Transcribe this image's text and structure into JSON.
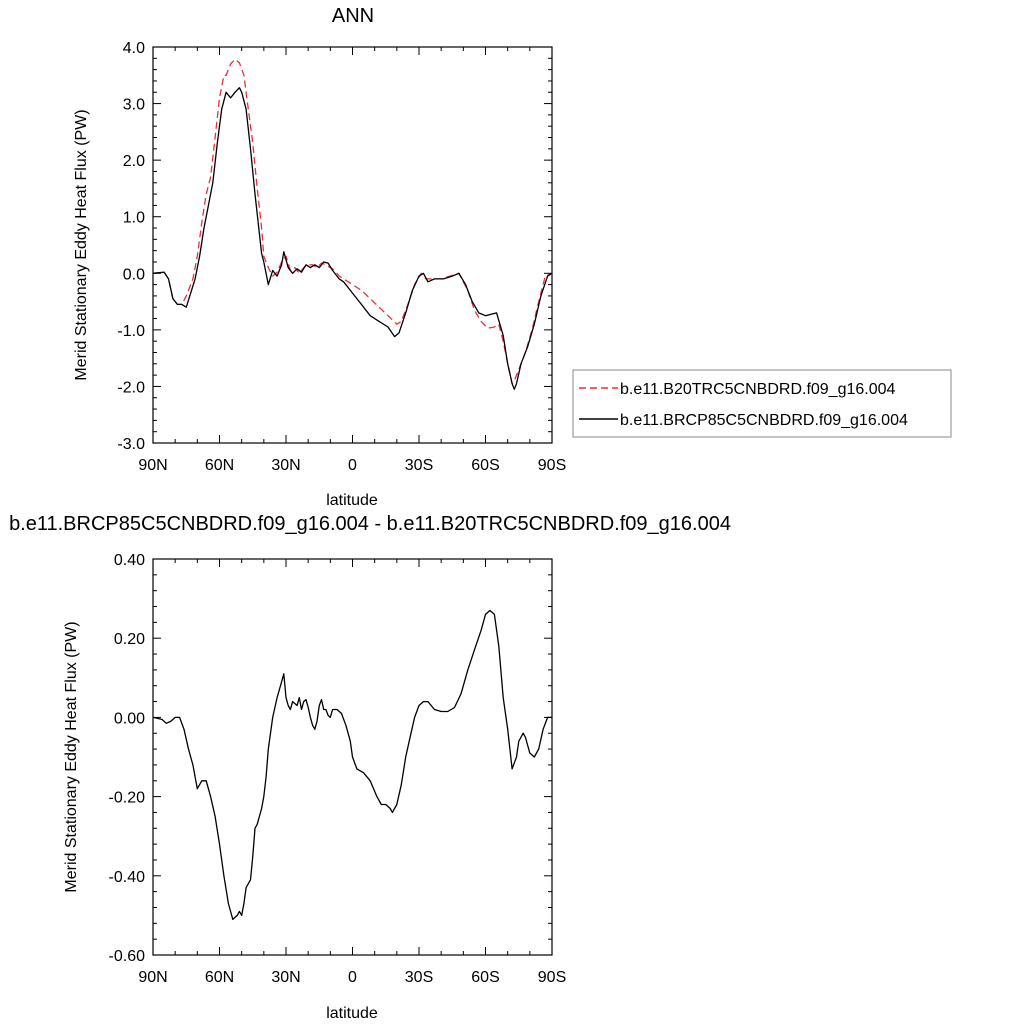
{
  "chart_data": [
    {
      "type": "line",
      "title": "ANN",
      "xlabel": "latitude",
      "ylabel": "Merid Stationary Eddy Heat Flux (PW)",
      "x_unit": "degrees latitude (positive = north)",
      "xlim": [
        90,
        -90
      ],
      "ylim": [
        -3.0,
        4.0
      ],
      "x_ticks": [
        90,
        60,
        30,
        0,
        -30,
        -60,
        -90
      ],
      "x_tick_labels": [
        "90N",
        "60N",
        "30N",
        "0",
        "30S",
        "60S",
        "90S"
      ],
      "y_ticks": [
        -3.0,
        -2.0,
        -1.0,
        0.0,
        1.0,
        2.0,
        3.0,
        4.0
      ],
      "y_tick_labels": [
        "-3.0",
        "-2.0",
        "-1.0",
        "0.0",
        "1.0",
        "2.0",
        "3.0",
        "4.0"
      ],
      "legend_position": "right, outside",
      "grid": false,
      "series": [
        {
          "name": "b.e11.B20TRC5CNBDRD.f09_g16.004",
          "color": "#e8303a",
          "style": "dashed",
          "points": [
            [
              90,
              0
            ],
            [
              85,
              0.02
            ],
            [
              83,
              -0.1
            ],
            [
              81,
              -0.45
            ],
            [
              79,
              -0.55
            ],
            [
              77,
              -0.55
            ],
            [
              75,
              -0.4
            ],
            [
              72,
              -0.1
            ],
            [
              70,
              0.3
            ],
            [
              68,
              0.9
            ],
            [
              66,
              1.4
            ],
            [
              64,
              1.7
            ],
            [
              62,
              2.4
            ],
            [
              60,
              3.1
            ],
            [
              58,
              3.5
            ],
            [
              57,
              3.5
            ],
            [
              56,
              3.6
            ],
            [
              55,
              3.7
            ],
            [
              53,
              3.78
            ],
            [
              51,
              3.72
            ],
            [
              49,
              3.5
            ],
            [
              47,
              2.9
            ],
            [
              45,
              2.3
            ],
            [
              43,
              1.5
            ],
            [
              41,
              0.8
            ],
            [
              40,
              0.3
            ],
            [
              38,
              0.1
            ],
            [
              36,
              -0.05
            ],
            [
              34,
              0.02
            ],
            [
              32,
              0.2
            ],
            [
              30,
              0.3
            ],
            [
              28,
              0.05
            ],
            [
              26,
              0.1
            ],
            [
              24,
              0.0
            ],
            [
              22,
              0.1
            ],
            [
              20,
              0.15
            ],
            [
              18,
              0.15
            ],
            [
              16,
              0.1
            ],
            [
              14,
              0.18
            ],
            [
              12,
              0.15
            ],
            [
              10,
              0.1
            ],
            [
              8,
              0.05
            ],
            [
              6,
              -0.05
            ],
            [
              4,
              -0.1
            ],
            [
              0,
              -0.2
            ],
            [
              -4,
              -0.3
            ],
            [
              -8,
              -0.45
            ],
            [
              -12,
              -0.6
            ],
            [
              -16,
              -0.75
            ],
            [
              -20,
              -0.9
            ],
            [
              -22,
              -0.85
            ],
            [
              -25,
              -0.55
            ],
            [
              -28,
              -0.2
            ],
            [
              -31,
              0.0
            ],
            [
              -33,
              -0.1
            ],
            [
              -36,
              -0.1
            ],
            [
              -40,
              -0.1
            ],
            [
              -44,
              -0.05
            ],
            [
              -48,
              0.0
            ],
            [
              -52,
              -0.3
            ],
            [
              -55,
              -0.65
            ],
            [
              -58,
              -0.85
            ],
            [
              -61,
              -0.97
            ],
            [
              -64,
              -0.95
            ],
            [
              -66,
              -0.9
            ],
            [
              -68,
              -1.2
            ],
            [
              -70,
              -1.6
            ],
            [
              -72,
              -1.95
            ],
            [
              -73,
              -1.9
            ],
            [
              -75,
              -1.7
            ],
            [
              -78,
              -1.4
            ],
            [
              -81,
              -1.0
            ],
            [
              -84,
              -0.5
            ],
            [
              -87,
              -0.05
            ],
            [
              -90,
              0
            ]
          ]
        },
        {
          "name": "b.e11.BRCP85C5CNBDRD.f09_g16.004",
          "color": "#000000",
          "style": "solid",
          "points": [
            [
              90,
              0
            ],
            [
              85,
              0.02
            ],
            [
              83,
              -0.1
            ],
            [
              81,
              -0.45
            ],
            [
              79,
              -0.55
            ],
            [
              77,
              -0.55
            ],
            [
              75,
              -0.6
            ],
            [
              73,
              -0.35
            ],
            [
              71,
              -0.1
            ],
            [
              69,
              0.3
            ],
            [
              67,
              0.8
            ],
            [
              65,
              1.2
            ],
            [
              63,
              1.6
            ],
            [
              61,
              2.3
            ],
            [
              59,
              2.9
            ],
            [
              57,
              3.2
            ],
            [
              55,
              3.1
            ],
            [
              53,
              3.2
            ],
            [
              51,
              3.28
            ],
            [
              50,
              3.2
            ],
            [
              48,
              2.9
            ],
            [
              46,
              2.2
            ],
            [
              44,
              1.4
            ],
            [
              42,
              0.7
            ],
            [
              41,
              0.35
            ],
            [
              40,
              0.2
            ],
            [
              38,
              -0.2
            ],
            [
              36,
              0.05
            ],
            [
              34,
              -0.05
            ],
            [
              32,
              0.15
            ],
            [
              31,
              0.38
            ],
            [
              29,
              0.1
            ],
            [
              27,
              0.0
            ],
            [
              25,
              0.08
            ],
            [
              23,
              0.02
            ],
            [
              21,
              0.15
            ],
            [
              19,
              0.1
            ],
            [
              17,
              0.15
            ],
            [
              15,
              0.1
            ],
            [
              13,
              0.2
            ],
            [
              11,
              0.18
            ],
            [
              9,
              0.05
            ],
            [
              6,
              -0.1
            ],
            [
              4,
              -0.15
            ],
            [
              0,
              -0.35
            ],
            [
              -4,
              -0.55
            ],
            [
              -8,
              -0.75
            ],
            [
              -12,
              -0.85
            ],
            [
              -16,
              -0.95
            ],
            [
              -19,
              -1.12
            ],
            [
              -21,
              -1.05
            ],
            [
              -24,
              -0.7
            ],
            [
              -27,
              -0.3
            ],
            [
              -30,
              -0.05
            ],
            [
              -32,
              0.0
            ],
            [
              -34,
              -0.15
            ],
            [
              -37,
              -0.1
            ],
            [
              -41,
              -0.1
            ],
            [
              -45,
              -0.05
            ],
            [
              -48,
              0.0
            ],
            [
              -51,
              -0.2
            ],
            [
              -54,
              -0.5
            ],
            [
              -57,
              -0.7
            ],
            [
              -60,
              -0.75
            ],
            [
              -63,
              -0.72
            ],
            [
              -65,
              -0.7
            ],
            [
              -68,
              -1.1
            ],
            [
              -70,
              -1.6
            ],
            [
              -72,
              -1.95
            ],
            [
              -73,
              -2.05
            ],
            [
              -74,
              -1.95
            ],
            [
              -76,
              -1.6
            ],
            [
              -79,
              -1.3
            ],
            [
              -82,
              -0.9
            ],
            [
              -85,
              -0.4
            ],
            [
              -88,
              -0.05
            ],
            [
              -90,
              0
            ]
          ]
        }
      ]
    },
    {
      "type": "line",
      "title": "b.e11.BRCP85C5CNBDRD.f09_g16.004 - b.e11.B20TRC5CNBDRD.f09_g16.004",
      "xlabel": "latitude",
      "ylabel": "Merid Stationary Eddy Heat Flux (PW)",
      "x_unit": "degrees latitude (positive = north)",
      "xlim": [
        90,
        -90
      ],
      "ylim": [
        -0.6,
        0.4
      ],
      "x_ticks": [
        90,
        60,
        30,
        0,
        -30,
        -60,
        -90
      ],
      "x_tick_labels": [
        "90N",
        "60N",
        "30N",
        "0",
        "30S",
        "60S",
        "90S"
      ],
      "y_ticks": [
        -0.6,
        -0.4,
        -0.2,
        0.0,
        0.2,
        0.4
      ],
      "y_tick_labels": [
        "-0.60",
        "-0.40",
        "-0.20",
        "0.00",
        "0.20",
        "0.40"
      ],
      "grid": false,
      "series": [
        {
          "color": "#000000",
          "style": "solid",
          "points": [
            [
              90,
              0.0
            ],
            [
              86,
              -0.005
            ],
            [
              84,
              -0.015
            ],
            [
              82,
              -0.01
            ],
            [
              80,
              0.0
            ],
            [
              78,
              0.0
            ],
            [
              76,
              -0.03
            ],
            [
              74,
              -0.08
            ],
            [
              72,
              -0.12
            ],
            [
              70,
              -0.18
            ],
            [
              68,
              -0.16
            ],
            [
              66,
              -0.16
            ],
            [
              64,
              -0.2
            ],
            [
              62,
              -0.25
            ],
            [
              60,
              -0.32
            ],
            [
              58,
              -0.4
            ],
            [
              56,
              -0.47
            ],
            [
              54,
              -0.51
            ],
            [
              52,
              -0.5
            ],
            [
              51,
              -0.49
            ],
            [
              50,
              -0.5
            ],
            [
              49,
              -0.47
            ],
            [
              48,
              -0.43
            ],
            [
              47,
              -0.42
            ],
            [
              46,
              -0.41
            ],
            [
              45,
              -0.35
            ],
            [
              44,
              -0.28
            ],
            [
              43,
              -0.27
            ],
            [
              41,
              -0.23
            ],
            [
              40,
              -0.2
            ],
            [
              39,
              -0.15
            ],
            [
              38,
              -0.08
            ],
            [
              36,
              0.0
            ],
            [
              34,
              0.05
            ],
            [
              32,
              0.09
            ],
            [
              31,
              0.11
            ],
            [
              30,
              0.05
            ],
            [
              29,
              0.03
            ],
            [
              28,
              0.02
            ],
            [
              27,
              0.04
            ],
            [
              25,
              0.03
            ],
            [
              24,
              0.05
            ],
            [
              23,
              0.02
            ],
            [
              22,
              0.04
            ],
            [
              21,
              0.045
            ],
            [
              20,
              0.025
            ],
            [
              19,
              0.0
            ],
            [
              18,
              -0.02
            ],
            [
              17,
              -0.03
            ],
            [
              16,
              -0.01
            ],
            [
              15,
              0.03
            ],
            [
              14,
              0.045
            ],
            [
              13,
              0.02
            ],
            [
              12,
              0.02
            ],
            [
              11,
              0.005
            ],
            [
              10,
              0.0
            ],
            [
              9,
              0.02
            ],
            [
              7,
              0.02
            ],
            [
              5,
              0.01
            ],
            [
              3,
              -0.02
            ],
            [
              1,
              -0.06
            ],
            [
              0,
              -0.1
            ],
            [
              -2,
              -0.13
            ],
            [
              -5,
              -0.14
            ],
            [
              -8,
              -0.16
            ],
            [
              -11,
              -0.2
            ],
            [
              -13,
              -0.22
            ],
            [
              -15,
              -0.22
            ],
            [
              -17,
              -0.23
            ],
            [
              -18,
              -0.24
            ],
            [
              -20,
              -0.22
            ],
            [
              -22,
              -0.17
            ],
            [
              -24,
              -0.1
            ],
            [
              -26,
              -0.05
            ],
            [
              -28,
              0.0
            ],
            [
              -30,
              0.03
            ],
            [
              -32,
              0.04
            ],
            [
              -34,
              0.04
            ],
            [
              -37,
              0.02
            ],
            [
              -40,
              0.015
            ],
            [
              -43,
              0.015
            ],
            [
              -46,
              0.025
            ],
            [
              -49,
              0.06
            ],
            [
              -52,
              0.12
            ],
            [
              -55,
              0.17
            ],
            [
              -58,
              0.22
            ],
            [
              -60,
              0.26
            ],
            [
              -62,
              0.27
            ],
            [
              -64,
              0.26
            ],
            [
              -66,
              0.18
            ],
            [
              -68,
              0.05
            ],
            [
              -70,
              -0.03
            ],
            [
              -71,
              -0.08
            ],
            [
              -72,
              -0.13
            ],
            [
              -74,
              -0.1
            ],
            [
              -75,
              -0.06
            ],
            [
              -77,
              -0.04
            ],
            [
              -78,
              -0.05
            ],
            [
              -80,
              -0.09
            ],
            [
              -82,
              -0.1
            ],
            [
              -84,
              -0.08
            ],
            [
              -86,
              -0.03
            ],
            [
              -88,
              0.0
            ],
            [
              -90,
              0.0
            ]
          ]
        }
      ]
    }
  ]
}
